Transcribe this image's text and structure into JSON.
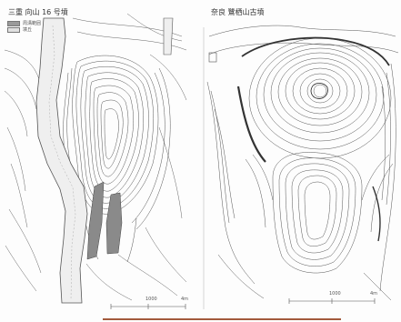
{
  "left_panel": {
    "title": "三重  向山 16 号墳",
    "legend": [
      {
        "label": "周溝範囲",
        "swatch": "#9a9a9a"
      },
      {
        "label": "墳丘",
        "swatch": "#e0e0e0"
      }
    ],
    "scale": {
      "mid": "1000",
      "end": "4m"
    }
  },
  "right_panel": {
    "title": "奈良  鷺栖山古墳",
    "scale": {
      "mid": "1000",
      "end": "4m"
    }
  },
  "colors": {
    "accent_rule": "#a35a3c",
    "line": "#555555",
    "fill_dark": "#8a8a8a"
  }
}
